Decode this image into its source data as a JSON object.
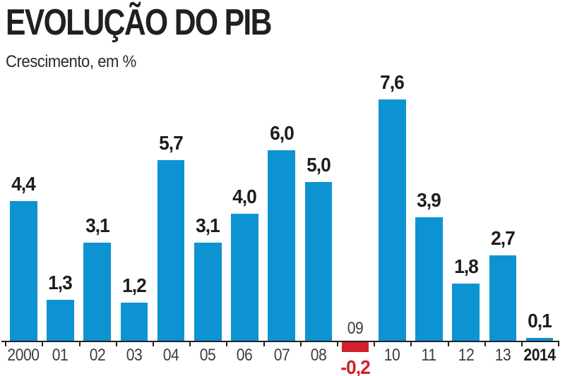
{
  "page": {
    "background": "#ffffff"
  },
  "chart_data": {
    "type": "bar",
    "title": "EVOLUÇÃO DO PIB",
    "subtitle": "Crescimento, em %",
    "categories": [
      "2000",
      "01",
      "02",
      "03",
      "04",
      "05",
      "06",
      "07",
      "08",
      "09",
      "10",
      "11",
      "12",
      "13",
      "2014"
    ],
    "values": [
      4.4,
      1.3,
      3.1,
      1.2,
      5.7,
      3.1,
      4.0,
      6.0,
      5.0,
      -0.2,
      7.6,
      3.9,
      1.8,
      2.7,
      0.1
    ],
    "value_labels": [
      "4,4",
      "1,3",
      "3,1",
      "1,2",
      "5,7",
      "3,1",
      "4,0",
      "6,0",
      "5,0",
      "-0,2",
      "7,6",
      "3,9",
      "1,8",
      "2,7",
      "0,1"
    ],
    "highlight_category": "2014",
    "xlabel": "",
    "ylabel": "",
    "ylim": [
      -0.5,
      8
    ],
    "grid": false,
    "legend": false,
    "bar_color": "#0d93d2",
    "negative_bar_color": "#d1202b",
    "negative_value_color": "#d1202b",
    "axis_color": "#231f20",
    "value_label_color": "#1d1d1b",
    "tick_label_color": "#3c3c3c"
  }
}
